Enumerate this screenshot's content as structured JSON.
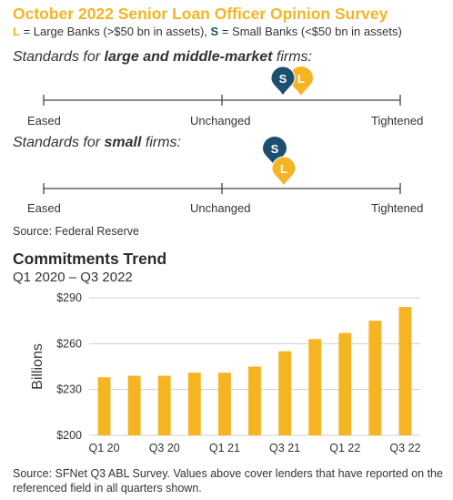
{
  "header": {
    "title": "October 2022 Senior Loan Officer Opinion Survey",
    "legend_l_key": "L",
    "legend_l_text": " = Large Banks (>$50 bn in assets), ",
    "legend_s_key": "S",
    "legend_s_text": " = Small Banks (<$50 bn in assets)"
  },
  "survey": {
    "large_heading_pre": "Standards for ",
    "large_heading_bold": "large and middle-market",
    "large_heading_post": " firms:",
    "small_heading_pre": "Standards for ",
    "small_heading_bold": "small",
    "small_heading_post": " firms:",
    "scale_left": "Eased",
    "scale_mid": "Unchanged",
    "scale_right": "Tightened",
    "marker_s": "S",
    "marker_l": "L",
    "source": "Source: Federal Reserve",
    "colors": {
      "large": "#f5b523",
      "small": "#1c4e6e"
    }
  },
  "chart_data": {
    "type": "bar",
    "title": "Commitments Trend",
    "subtitle": "Q1 2020 – Q3 2022",
    "xlabel": "",
    "ylabel": "Billions",
    "ylim": [
      200,
      290
    ],
    "yticks": [
      200,
      230,
      260,
      290
    ],
    "ytick_labels": [
      "$200",
      "$230",
      "$260",
      "$290"
    ],
    "categories": [
      "Q1 20",
      "Q2 20",
      "Q3 20",
      "Q4 20",
      "Q1 21",
      "Q2 21",
      "Q3 21",
      "Q4 21",
      "Q1 22",
      "Q2 22",
      "Q3 22"
    ],
    "xtick_labels": [
      "Q1 20",
      "",
      "Q3 20",
      "",
      "Q1 21",
      "",
      "Q3 21",
      "",
      "Q1 22",
      "",
      "Q3 22"
    ],
    "values": [
      238,
      239,
      239,
      241,
      241,
      245,
      255,
      263,
      267,
      275,
      284
    ],
    "bar_color": "#f5b523",
    "grid": "horizontal"
  },
  "footer": {
    "footnote": "Source: SFNet Q3 ABL Survey. Values above cover lenders that have reported on the referenced field in all quarters shown."
  }
}
